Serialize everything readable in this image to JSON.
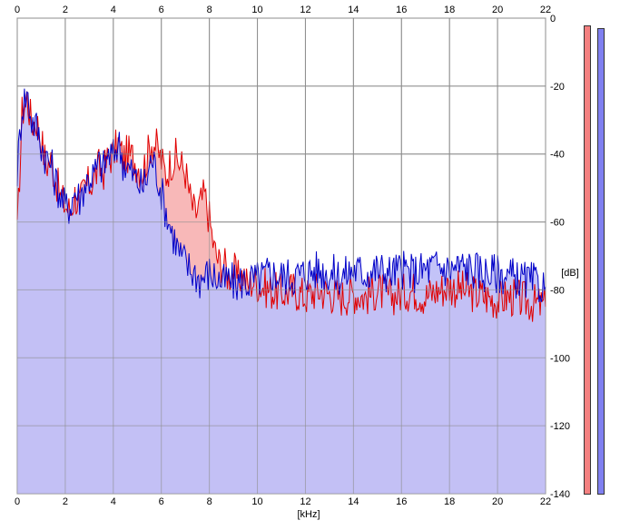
{
  "chart_data": {
    "type": "area",
    "xlabel": "[kHz]",
    "ylabel": "[dB]",
    "xlim": [
      0,
      22
    ],
    "ylim": [
      -140,
      0
    ],
    "xticks": [
      "0",
      "2",
      "4",
      "6",
      "8",
      "10",
      "12",
      "14",
      "16",
      "18",
      "20",
      "22"
    ],
    "yticks": [
      "0",
      "-20",
      "-40",
      "-60",
      "-80",
      "-100",
      "-120",
      "-140"
    ],
    "grid": true,
    "series": [
      {
        "color": "#e00000",
        "fill": "#f8b8b8",
        "values": [
          [
            0.0,
            -64
          ],
          [
            0.2,
            -28
          ],
          [
            0.4,
            -23
          ],
          [
            0.6,
            -31
          ],
          [
            0.8,
            -30
          ],
          [
            1.0,
            -36
          ],
          [
            1.2,
            -43
          ],
          [
            1.4,
            -42
          ],
          [
            1.6,
            -47
          ],
          [
            1.8,
            -53
          ],
          [
            2.0,
            -55
          ],
          [
            2.2,
            -57
          ],
          [
            2.4,
            -52
          ],
          [
            2.6,
            -55
          ],
          [
            2.8,
            -50
          ],
          [
            3.0,
            -49
          ],
          [
            3.2,
            -47
          ],
          [
            3.4,
            -44
          ],
          [
            3.6,
            -45
          ],
          [
            3.8,
            -41
          ],
          [
            4.0,
            -40
          ],
          [
            4.2,
            -37
          ],
          [
            4.4,
            -41
          ],
          [
            4.6,
            -40
          ],
          [
            4.8,
            -41
          ],
          [
            5.0,
            -43
          ],
          [
            5.2,
            -45
          ],
          [
            5.4,
            -41
          ],
          [
            5.6,
            -36
          ],
          [
            5.8,
            -38
          ],
          [
            6.0,
            -42
          ],
          [
            6.2,
            -46
          ],
          [
            6.4,
            -42
          ],
          [
            6.6,
            -41
          ],
          [
            6.8,
            -43
          ],
          [
            7.0,
            -45
          ],
          [
            7.2,
            -53
          ],
          [
            7.4,
            -58
          ],
          [
            7.6,
            -55
          ],
          [
            7.8,
            -52
          ],
          [
            8.0,
            -59
          ],
          [
            8.2,
            -68
          ],
          [
            8.4,
            -72
          ],
          [
            8.6,
            -72
          ],
          [
            8.8,
            -76
          ],
          [
            9.0,
            -74
          ],
          [
            9.2,
            -77
          ],
          [
            9.4,
            -75
          ],
          [
            9.6,
            -79
          ],
          [
            9.8,
            -77
          ],
          [
            10.0,
            -78
          ],
          [
            10.5,
            -80
          ],
          [
            11.0,
            -81
          ],
          [
            11.5,
            -80
          ],
          [
            12.0,
            -82
          ],
          [
            12.5,
            -80
          ],
          [
            13.0,
            -81
          ],
          [
            13.5,
            -82
          ],
          [
            14.0,
            -81
          ],
          [
            14.5,
            -82
          ],
          [
            15.0,
            -80
          ],
          [
            15.5,
            -82
          ],
          [
            16.0,
            -81
          ],
          [
            16.5,
            -80
          ],
          [
            17.0,
            -82
          ],
          [
            17.5,
            -80
          ],
          [
            18.0,
            -79
          ],
          [
            18.5,
            -80
          ],
          [
            19.0,
            -81
          ],
          [
            19.5,
            -82
          ],
          [
            20.0,
            -83
          ],
          [
            20.5,
            -82
          ],
          [
            21.0,
            -83
          ],
          [
            21.5,
            -84
          ],
          [
            22.0,
            -85
          ]
        ]
      },
      {
        "color": "#0000c8",
        "fill": "#c0c0f8",
        "values": [
          [
            0.0,
            -45
          ],
          [
            0.2,
            -26
          ],
          [
            0.4,
            -22
          ],
          [
            0.6,
            -30
          ],
          [
            0.8,
            -32
          ],
          [
            1.0,
            -37
          ],
          [
            1.2,
            -41
          ],
          [
            1.4,
            -43
          ],
          [
            1.6,
            -48
          ],
          [
            1.8,
            -52
          ],
          [
            2.0,
            -56
          ],
          [
            2.2,
            -55
          ],
          [
            2.4,
            -51
          ],
          [
            2.6,
            -53
          ],
          [
            2.8,
            -49
          ],
          [
            3.0,
            -47
          ],
          [
            3.2,
            -46
          ],
          [
            3.4,
            -43
          ],
          [
            3.6,
            -44
          ],
          [
            3.8,
            -40
          ],
          [
            4.0,
            -41
          ],
          [
            4.2,
            -36
          ],
          [
            4.4,
            -42
          ],
          [
            4.6,
            -44
          ],
          [
            4.8,
            -46
          ],
          [
            5.0,
            -48
          ],
          [
            5.2,
            -50
          ],
          [
            5.4,
            -47
          ],
          [
            5.6,
            -41
          ],
          [
            5.8,
            -45
          ],
          [
            6.0,
            -51
          ],
          [
            6.2,
            -57
          ],
          [
            6.4,
            -62
          ],
          [
            6.6,
            -66
          ],
          [
            6.8,
            -70
          ],
          [
            7.0,
            -72
          ],
          [
            7.2,
            -74
          ],
          [
            7.4,
            -75
          ],
          [
            7.6,
            -77
          ],
          [
            7.8,
            -76
          ],
          [
            8.0,
            -75
          ],
          [
            8.2,
            -76
          ],
          [
            8.4,
            -77
          ],
          [
            8.6,
            -78
          ],
          [
            8.8,
            -77
          ],
          [
            9.0,
            -78
          ],
          [
            9.2,
            -78
          ],
          [
            9.4,
            -77
          ],
          [
            9.6,
            -78
          ],
          [
            9.8,
            -77
          ],
          [
            10.0,
            -77
          ],
          [
            10.5,
            -75
          ],
          [
            11.0,
            -76
          ],
          [
            11.5,
            -76
          ],
          [
            12.0,
            -75
          ],
          [
            12.5,
            -74
          ],
          [
            13.0,
            -75
          ],
          [
            13.5,
            -76
          ],
          [
            14.0,
            -74
          ],
          [
            14.5,
            -75
          ],
          [
            15.0,
            -74
          ],
          [
            15.5,
            -75
          ],
          [
            16.0,
            -74
          ],
          [
            16.5,
            -75
          ],
          [
            17.0,
            -74
          ],
          [
            17.5,
            -73
          ],
          [
            18.0,
            -74
          ],
          [
            18.5,
            -73
          ],
          [
            19.0,
            -74
          ],
          [
            19.5,
            -75
          ],
          [
            20.0,
            -75
          ],
          [
            20.5,
            -76
          ],
          [
            21.0,
            -77
          ],
          [
            21.5,
            -78
          ],
          [
            22.0,
            -79
          ]
        ]
      }
    ]
  },
  "meters": {
    "left": {
      "color": "#f48080",
      "level_db": -2
    },
    "right": {
      "color": "#8080f0",
      "level_db": -3
    }
  }
}
